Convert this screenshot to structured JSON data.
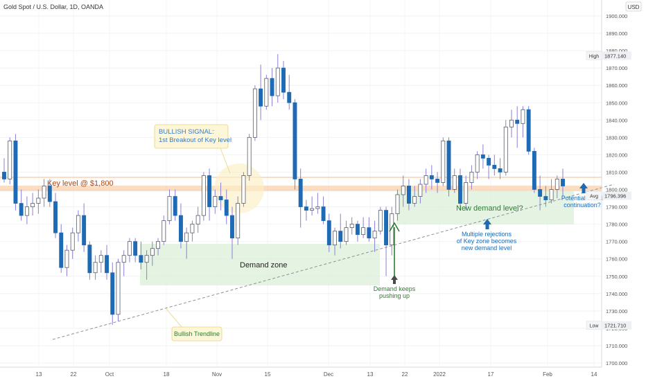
{
  "header": {
    "symbol_title": "Gold Spot / U.S. Dollar, 1D, OANDA",
    "currency": "USD"
  },
  "chart_data": {
    "type": "candlestick",
    "title": "Gold Spot / U.S. Dollar, 1D, OANDA",
    "xlabel": "",
    "ylabel": "",
    "ylim": [
      1700,
      1910
    ],
    "y_ticks": [
      "1900.000",
      "1890.000",
      "1880.000",
      "1870.000",
      "1860.000",
      "1850.000",
      "1840.000",
      "1830.000",
      "1820.000",
      "1810.000",
      "1800.000",
      "1790.000",
      "1780.000",
      "1770.000",
      "1760.000",
      "1750.000",
      "1740.000",
      "1730.000",
      "1720.000",
      "1710.000",
      "1700.000"
    ],
    "x_ticks": [
      "13",
      "22",
      "Oct",
      "18",
      "Nov",
      "15",
      "Dec",
      "13",
      "22",
      "2022",
      "17",
      "Feb",
      "14"
    ],
    "price_labels": [
      {
        "name": "High",
        "value": "1877.140"
      },
      {
        "name": "Avg",
        "value": "1796.396"
      },
      {
        "name": "Low",
        "value": "1721.710"
      }
    ],
    "candles": [
      [
        1810,
        1818,
        1804,
        1806
      ],
      [
        1806,
        1830,
        1803,
        1828
      ],
      [
        1828,
        1832,
        1788,
        1792
      ],
      [
        1792,
        1800,
        1782,
        1785
      ],
      [
        1785,
        1796,
        1780,
        1790
      ],
      [
        1790,
        1798,
        1785,
        1792
      ],
      [
        1792,
        1800,
        1786,
        1795
      ],
      [
        1795,
        1806,
        1790,
        1802
      ],
      [
        1802,
        1806,
        1790,
        1793
      ],
      [
        1793,
        1798,
        1772,
        1775
      ],
      [
        1775,
        1780,
        1752,
        1755
      ],
      [
        1755,
        1768,
        1750,
        1765
      ],
      [
        1765,
        1778,
        1760,
        1775
      ],
      [
        1775,
        1788,
        1770,
        1785
      ],
      [
        1785,
        1792,
        1764,
        1768
      ],
      [
        1768,
        1770,
        1748,
        1752
      ],
      [
        1752,
        1762,
        1748,
        1758
      ],
      [
        1758,
        1765,
        1752,
        1762
      ],
      [
        1762,
        1768,
        1748,
        1752
      ],
      [
        1752,
        1758,
        1722,
        1728
      ],
      [
        1728,
        1760,
        1724,
        1758
      ],
      [
        1758,
        1765,
        1750,
        1762
      ],
      [
        1762,
        1772,
        1758,
        1770
      ],
      [
        1770,
        1772,
        1758,
        1762
      ],
      [
        1762,
        1770,
        1754,
        1758
      ],
      [
        1758,
        1765,
        1748,
        1762
      ],
      [
        1762,
        1770,
        1756,
        1766
      ],
      [
        1766,
        1772,
        1762,
        1770
      ],
      [
        1770,
        1785,
        1768,
        1782
      ],
      [
        1782,
        1800,
        1780,
        1796
      ],
      [
        1796,
        1800,
        1782,
        1785
      ],
      [
        1785,
        1792,
        1766,
        1770
      ],
      [
        1770,
        1778,
        1760,
        1775
      ],
      [
        1775,
        1782,
        1770,
        1780
      ],
      [
        1780,
        1790,
        1775,
        1785
      ],
      [
        1785,
        1810,
        1782,
        1808
      ],
      [
        1808,
        1812,
        1782,
        1790
      ],
      [
        1790,
        1800,
        1786,
        1796
      ],
      [
        1796,
        1804,
        1788,
        1794
      ],
      [
        1794,
        1800,
        1780,
        1785
      ],
      [
        1785,
        1790,
        1760,
        1772
      ],
      [
        1772,
        1796,
        1768,
        1792
      ],
      [
        1792,
        1810,
        1790,
        1808
      ],
      [
        1808,
        1832,
        1805,
        1830
      ],
      [
        1830,
        1860,
        1828,
        1858
      ],
      [
        1858,
        1872,
        1840,
        1848
      ],
      [
        1848,
        1866,
        1846,
        1864
      ],
      [
        1864,
        1870,
        1848,
        1854
      ],
      [
        1854,
        1878,
        1850,
        1870
      ],
      [
        1870,
        1874,
        1852,
        1856
      ],
      [
        1856,
        1866,
        1846,
        1850
      ],
      [
        1850,
        1852,
        1800,
        1806
      ],
      [
        1806,
        1812,
        1778,
        1790
      ],
      [
        1790,
        1794,
        1782,
        1788
      ],
      [
        1788,
        1796,
        1785,
        1789
      ],
      [
        1789,
        1798,
        1786,
        1790
      ],
      [
        1790,
        1796,
        1780,
        1782
      ],
      [
        1782,
        1786,
        1764,
        1768
      ],
      [
        1768,
        1778,
        1762,
        1776
      ],
      [
        1776,
        1786,
        1766,
        1770
      ],
      [
        1770,
        1782,
        1768,
        1778
      ],
      [
        1778,
        1784,
        1774,
        1780
      ],
      [
        1780,
        1782,
        1770,
        1774
      ],
      [
        1774,
        1784,
        1772,
        1778
      ],
      [
        1778,
        1784,
        1770,
        1772
      ],
      [
        1772,
        1782,
        1764,
        1776
      ],
      [
        1776,
        1790,
        1774,
        1788
      ],
      [
        1788,
        1790,
        1750,
        1768
      ],
      [
        1768,
        1790,
        1762,
        1786
      ],
      [
        1786,
        1800,
        1782,
        1797
      ],
      [
        1797,
        1808,
        1790,
        1802
      ],
      [
        1802,
        1806,
        1788,
        1792
      ],
      [
        1792,
        1802,
        1790,
        1796
      ],
      [
        1796,
        1806,
        1792,
        1803
      ],
      [
        1803,
        1812,
        1798,
        1808
      ],
      [
        1808,
        1814,
        1800,
        1806
      ],
      [
        1806,
        1810,
        1798,
        1804
      ],
      [
        1804,
        1830,
        1802,
        1828
      ],
      [
        1828,
        1830,
        1796,
        1800
      ],
      [
        1800,
        1812,
        1798,
        1808
      ],
      [
        1808,
        1812,
        1788,
        1792
      ],
      [
        1792,
        1808,
        1788,
        1804
      ],
      [
        1804,
        1814,
        1800,
        1810
      ],
      [
        1810,
        1822,
        1806,
        1820
      ],
      [
        1820,
        1826,
        1812,
        1818
      ],
      [
        1818,
        1820,
        1806,
        1814
      ],
      [
        1814,
        1820,
        1808,
        1812
      ],
      [
        1812,
        1818,
        1806,
        1810
      ],
      [
        1810,
        1840,
        1808,
        1836
      ],
      [
        1836,
        1846,
        1830,
        1840
      ],
      [
        1840,
        1848,
        1824,
        1838
      ],
      [
        1838,
        1848,
        1830,
        1846
      ],
      [
        1846,
        1848,
        1820,
        1822
      ],
      [
        1822,
        1824,
        1798,
        1800
      ],
      [
        1800,
        1808,
        1788,
        1796
      ],
      [
        1796,
        1802,
        1790,
        1794
      ],
      [
        1794,
        1806,
        1792,
        1800
      ],
      [
        1800,
        1808,
        1795,
        1806
      ],
      [
        1806,
        1812,
        1796,
        1802
      ]
    ],
    "annotations": [
      {
        "id": "key-level",
        "text": "Key level @ $1,800"
      },
      {
        "id": "bullish-signal",
        "text": "BULLISH SIGNAL:\n1st Breakout of Key level"
      },
      {
        "id": "demand-zone",
        "text": "Demand zone"
      },
      {
        "id": "new-demand",
        "text": "New demand level?"
      },
      {
        "id": "rejections",
        "text": "Multiple rejections\nof Key zone becomes\nnew demand level"
      },
      {
        "id": "demand-pushing",
        "text": "Demand keeps\npushing up"
      },
      {
        "id": "trendline",
        "text": "Bullish Trendline"
      },
      {
        "id": "continuation",
        "text": "Potential Trend\ncontinuation?"
      }
    ],
    "colors": {
      "up": "#ffffff",
      "down": "#1e6ab5",
      "border": "#555a63",
      "wick": "#8a7fd6",
      "key": "#f7b98a",
      "zone": "#dcefd9",
      "arrow_green": "#2e7d32",
      "arrow_blue": "#1e6ab5"
    }
  }
}
